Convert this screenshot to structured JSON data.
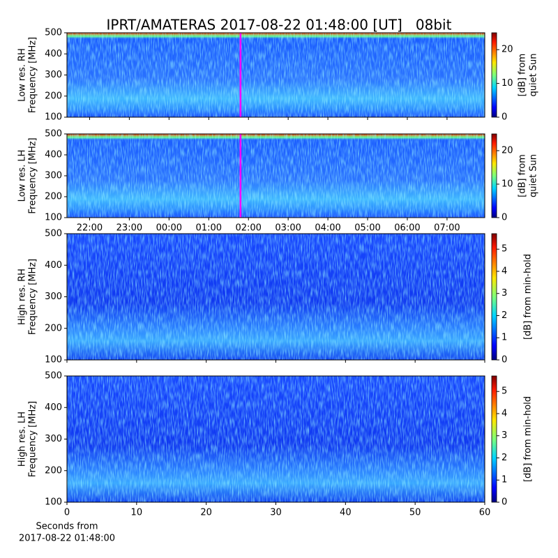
{
  "chart_data": [
    {
      "type": "heatmap",
      "title": "IPRT/AMATERAS 2017-08-22 01:48:00 [UT]   08bit",
      "ylabel": [
        "Low res. RH",
        "Frequency [MHz]"
      ],
      "ylim": [
        100,
        500
      ],
      "yticks": [
        100,
        200,
        300,
        400,
        500
      ],
      "xlim": [
        21.43,
        31.95
      ],
      "marker_x": 25.8,
      "marker_color": "#ff00ff",
      "colorbar": {
        "label": [
          "[dB] from",
          "quiet Sun"
        ],
        "lim": [
          0,
          25
        ],
        "ticks": [
          0,
          10,
          20
        ]
      }
    },
    {
      "type": "heatmap",
      "ylabel": [
        "Low res. LH",
        "Frequency [MHz]"
      ],
      "ylim": [
        100,
        500
      ],
      "yticks": [
        100,
        200,
        300,
        400,
        500
      ],
      "xlim": [
        21.43,
        31.95
      ],
      "marker_x": 25.8,
      "marker_color": "#ff00ff",
      "xticks": [
        {
          "value": 22,
          "label": "22:00"
        },
        {
          "value": 23,
          "label": "23:00"
        },
        {
          "value": 24,
          "label": "00:00"
        },
        {
          "value": 25,
          "label": "01:00"
        },
        {
          "value": 26,
          "label": "02:00"
        },
        {
          "value": 27,
          "label": "03:00"
        },
        {
          "value": 28,
          "label": "04:00"
        },
        {
          "value": 29,
          "label": "05:00"
        },
        {
          "value": 30,
          "label": "06:00"
        },
        {
          "value": 31,
          "label": "07:00"
        }
      ],
      "colorbar": {
        "label": [
          "[dB] from",
          "quiet Sun"
        ],
        "lim": [
          0,
          25
        ],
        "ticks": [
          0,
          10,
          20
        ]
      }
    },
    {
      "type": "heatmap",
      "ylabel": [
        "High res. RH",
        "Frequency [MHz]"
      ],
      "ylim": [
        100,
        500
      ],
      "yticks": [
        100,
        200,
        300,
        400,
        500
      ],
      "xlim": [
        0,
        60
      ],
      "colorbar": {
        "label": [
          "[dB] from min-hold"
        ],
        "lim": [
          0,
          5.7
        ],
        "ticks": [
          0,
          1,
          2,
          3,
          4,
          5
        ]
      }
    },
    {
      "type": "heatmap",
      "ylabel": [
        "High res. LH",
        "Frequency [MHz]"
      ],
      "ylim": [
        100,
        500
      ],
      "yticks": [
        100,
        200,
        300,
        400,
        500
      ],
      "xlim": [
        0,
        60
      ],
      "xticks": [
        0,
        10,
        20,
        30,
        40,
        50,
        60
      ],
      "xlabel": [
        "Seconds from",
        "2017-08-22 01:48:00"
      ],
      "colorbar": {
        "label": [
          "[dB] from min-hold"
        ],
        "lim": [
          0,
          5.7
        ],
        "ticks": [
          0,
          1,
          2,
          3,
          4,
          5
        ]
      }
    }
  ]
}
